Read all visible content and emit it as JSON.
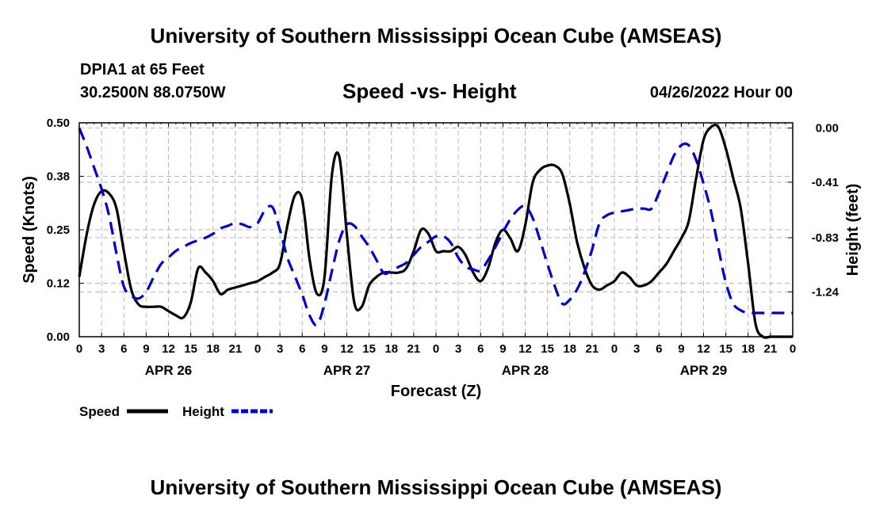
{
  "header": {
    "title": "University of Southern Mississippi Ocean Cube (AMSEAS)",
    "station": "DPIA1 at 65 Feet",
    "location": "30.2500N  88.0750W",
    "subtitle": "Speed -vs- Height",
    "datetime": "04/26/2022 Hour 00",
    "footer_title": "University of Southern Mississippi Ocean Cube (AMSEAS)"
  },
  "colors": {
    "speed": "#000000",
    "height": "#0000cc",
    "grid": "#b4b4b4"
  },
  "chart_data": {
    "type": "line",
    "xlabel": "Forecast (Z)",
    "ylabel_left": "Speed (Knots)",
    "ylabel_right": "Height (feet)",
    "xlim": [
      0,
      96
    ],
    "ylim_left": [
      0,
      0.5
    ],
    "ylim_right": [
      -1.58,
      0.04
    ],
    "x_tick_labels": [
      "0",
      "3",
      "6",
      "9",
      "12",
      "15",
      "18",
      "21",
      "0",
      "3",
      "6",
      "9",
      "12",
      "15",
      "18",
      "21",
      "0",
      "3",
      "6",
      "9",
      "12",
      "15",
      "18",
      "21",
      "0",
      "3",
      "6",
      "9",
      "12",
      "15",
      "18",
      "21",
      "0"
    ],
    "day_labels": [
      {
        "label": "APR 26",
        "x": 12
      },
      {
        "label": "APR 27",
        "x": 36
      },
      {
        "label": "APR 28",
        "x": 60
      },
      {
        "label": "APR 29",
        "x": 84
      }
    ],
    "y_left_ticks": [
      {
        "value": 0.0,
        "label": "0.00"
      },
      {
        "value": 0.125,
        "label": "0.12"
      },
      {
        "value": 0.25,
        "label": "0.25"
      },
      {
        "value": 0.375,
        "label": "0.38"
      },
      {
        "value": 0.5,
        "label": "0.50"
      }
    ],
    "y_right_ticks": [
      {
        "value": 0.0,
        "label": "0.00"
      },
      {
        "value": -0.41,
        "label": "-0.41"
      },
      {
        "value": -0.83,
        "label": "-0.83"
      },
      {
        "value": -1.24,
        "label": "-1.24"
      }
    ],
    "series": [
      {
        "name": "Speed",
        "axis": "left",
        "style": "solid",
        "x": [
          0,
          1,
          2,
          3,
          4,
          5,
          6,
          7,
          8,
          9,
          10,
          11,
          12,
          13,
          14,
          15,
          16,
          17,
          18,
          19,
          20,
          21,
          22,
          23,
          24,
          25,
          26,
          27,
          28,
          29,
          30,
          31,
          32,
          33,
          34,
          35,
          36,
          37,
          38,
          39,
          40,
          41,
          42,
          43,
          44,
          45,
          46,
          47,
          48,
          49,
          50,
          51,
          52,
          53,
          54,
          55,
          56,
          57,
          58,
          59,
          60,
          61,
          62,
          63,
          64,
          65,
          66,
          67,
          68,
          69,
          70,
          71,
          72,
          73,
          74,
          75,
          76,
          77,
          78,
          79,
          80,
          81,
          82,
          83,
          84,
          85,
          86,
          87,
          88,
          89,
          90,
          91,
          92,
          93,
          94,
          95,
          96
        ],
        "values": [
          0.14,
          0.24,
          0.31,
          0.34,
          0.335,
          0.3,
          0.2,
          0.11,
          0.075,
          0.07,
          0.07,
          0.07,
          0.06,
          0.05,
          0.045,
          0.08,
          0.16,
          0.15,
          0.13,
          0.1,
          0.11,
          0.115,
          0.12,
          0.125,
          0.13,
          0.14,
          0.15,
          0.17,
          0.26,
          0.33,
          0.32,
          0.18,
          0.1,
          0.14,
          0.38,
          0.42,
          0.24,
          0.08,
          0.07,
          0.12,
          0.14,
          0.15,
          0.15,
          0.15,
          0.16,
          0.2,
          0.25,
          0.24,
          0.2,
          0.2,
          0.2,
          0.21,
          0.19,
          0.15,
          0.13,
          0.16,
          0.22,
          0.25,
          0.23,
          0.2,
          0.26,
          0.36,
          0.39,
          0.4,
          0.4,
          0.38,
          0.31,
          0.22,
          0.16,
          0.12,
          0.11,
          0.12,
          0.13,
          0.15,
          0.14,
          0.12,
          0.12,
          0.13,
          0.15,
          0.17,
          0.2,
          0.23,
          0.27,
          0.37,
          0.46,
          0.49,
          0.49,
          0.44,
          0.37,
          0.3,
          0.17,
          0.03,
          0.0,
          0.0,
          0.0,
          0.0,
          0.0
        ]
      },
      {
        "name": "Height",
        "axis": "right",
        "style": "dashed",
        "x": [
          0,
          1,
          2,
          3,
          4,
          5,
          6,
          7,
          8,
          9,
          10,
          11,
          12,
          13,
          14,
          15,
          16,
          17,
          18,
          19,
          20,
          21,
          22,
          23,
          24,
          25,
          26,
          27,
          28,
          29,
          30,
          31,
          32,
          33,
          34,
          35,
          36,
          37,
          38,
          39,
          40,
          41,
          42,
          43,
          44,
          45,
          46,
          47,
          48,
          49,
          50,
          51,
          52,
          53,
          54,
          55,
          56,
          57,
          58,
          59,
          60,
          61,
          62,
          63,
          64,
          65,
          66,
          67,
          68,
          69,
          70,
          71,
          72,
          73,
          74,
          75,
          76,
          77,
          78,
          79,
          80,
          81,
          82,
          83,
          84,
          85,
          86,
          87,
          88,
          89,
          90,
          91,
          92,
          93,
          94,
          95,
          96
        ],
        "values": [
          0.0,
          -0.14,
          -0.3,
          -0.46,
          -0.66,
          -0.95,
          -1.2,
          -1.27,
          -1.29,
          -1.24,
          -1.13,
          -1.03,
          -0.98,
          -0.93,
          -0.9,
          -0.87,
          -0.85,
          -0.83,
          -0.8,
          -0.76,
          -0.74,
          -0.72,
          -0.73,
          -0.75,
          -0.72,
          -0.62,
          -0.6,
          -0.77,
          -0.98,
          -1.12,
          -1.26,
          -1.42,
          -1.49,
          -1.33,
          -1.08,
          -0.85,
          -0.73,
          -0.74,
          -0.82,
          -0.9,
          -1.0,
          -1.1,
          -1.08,
          -1.05,
          -1.02,
          -0.96,
          -0.9,
          -0.86,
          -0.82,
          -0.82,
          -0.87,
          -0.98,
          -1.05,
          -1.07,
          -1.08,
          -1.0,
          -0.9,
          -0.79,
          -0.69,
          -0.62,
          -0.59,
          -0.68,
          -0.85,
          -1.03,
          -1.2,
          -1.33,
          -1.3,
          -1.22,
          -1.09,
          -0.92,
          -0.72,
          -0.66,
          -0.64,
          -0.63,
          -0.62,
          -0.61,
          -0.61,
          -0.61,
          -0.49,
          -0.35,
          -0.21,
          -0.13,
          -0.13,
          -0.24,
          -0.42,
          -0.63,
          -0.91,
          -1.17,
          -1.33,
          -1.38,
          -1.4,
          -1.4,
          -1.4,
          -1.4,
          -1.4,
          -1.4,
          -1.4
        ]
      }
    ]
  },
  "legend": {
    "speed_label": "Speed",
    "height_label": "Height"
  }
}
